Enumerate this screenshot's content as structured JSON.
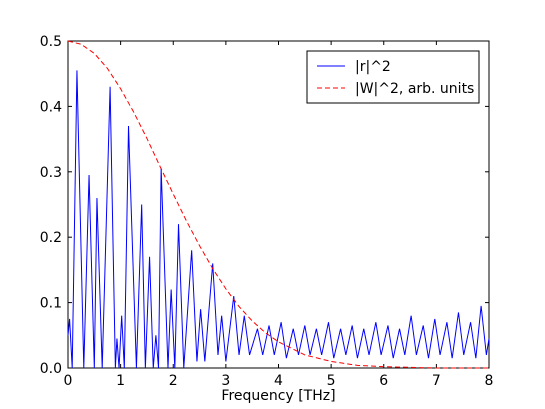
{
  "chart_data": {
    "type": "line",
    "xlabel": "Frequency [THz]",
    "xlim": [
      0,
      8
    ],
    "xticks": [
      0,
      1,
      2,
      3,
      4,
      5,
      6,
      7,
      8
    ],
    "ylim": [
      0,
      0.5
    ],
    "yticks": [
      {
        "value": 0,
        "label": "0.0"
      },
      {
        "value": 0.1,
        "label": "0.1"
      },
      {
        "value": 0.2,
        "label": "0.2"
      },
      {
        "value": 0.3,
        "label": "0.3"
      },
      {
        "value": 0.4,
        "label": "0.4"
      },
      {
        "value": 0.5,
        "label": "0.5"
      }
    ],
    "legend": "upper right",
    "series": [
      {
        "name": "|r|^2",
        "color": "#0000ff",
        "dash": "solid",
        "x": [
          0,
          0.03,
          0.08,
          0.17,
          0.3,
          0.4,
          0.5,
          0.55,
          0.65,
          0.8,
          0.9,
          0.93,
          0.97,
          1.02,
          1.07,
          1.15,
          1.3,
          1.4,
          1.47,
          1.55,
          1.62,
          1.67,
          1.72,
          1.77,
          1.9,
          1.96,
          2.03,
          2.1,
          2.2,
          2.35,
          2.45,
          2.52,
          2.6,
          2.75,
          2.85,
          2.92,
          3.0,
          3.15,
          3.25,
          3.35,
          3.45,
          3.6,
          3.7,
          3.82,
          3.92,
          4.05,
          4.15,
          4.28,
          4.38,
          4.5,
          4.6,
          4.72,
          4.82,
          4.95,
          5.05,
          5.18,
          5.28,
          5.4,
          5.5,
          5.62,
          5.72,
          5.85,
          5.95,
          6.08,
          6.18,
          6.3,
          6.4,
          6.52,
          6.62,
          6.75,
          6.85,
          6.97,
          7.07,
          7.2,
          7.3,
          7.42,
          7.52,
          7.65,
          7.75,
          7.85,
          7.95,
          8
        ],
        "values": [
          0.05,
          0.075,
          0,
          0.455,
          0,
          0.295,
          0,
          0.26,
          0,
          0.43,
          0,
          0.045,
          0,
          0.08,
          0,
          0.37,
          0,
          0.25,
          0,
          0.17,
          0,
          0.05,
          0,
          0.305,
          0,
          0.12,
          0,
          0.22,
          0,
          0.18,
          0.01,
          0.09,
          0.01,
          0.16,
          0.02,
          0.08,
          0.01,
          0.11,
          0.02,
          0.08,
          0.02,
          0.06,
          0.02,
          0.065,
          0.02,
          0.07,
          0.015,
          0.06,
          0.02,
          0.065,
          0.02,
          0.06,
          0.02,
          0.07,
          0.015,
          0.06,
          0.02,
          0.065,
          0.015,
          0.06,
          0.02,
          0.07,
          0.02,
          0.065,
          0.015,
          0.06,
          0.02,
          0.08,
          0.02,
          0.065,
          0.015,
          0.075,
          0.02,
          0.07,
          0.015,
          0.085,
          0.02,
          0.07,
          0.015,
          0.095,
          0.02,
          0.045
        ]
      },
      {
        "name": "|W|^2, arb. units",
        "color": "#ff0000",
        "dash": "dashed",
        "x": [
          0,
          0.25,
          0.5,
          0.75,
          1,
          1.25,
          1.5,
          1.75,
          2,
          2.25,
          2.5,
          2.75,
          3,
          3.25,
          3.5,
          3.75,
          4,
          4.5,
          5,
          5.5,
          6,
          7,
          8
        ],
        "values": [
          0.5,
          0.495,
          0.481,
          0.458,
          0.427,
          0.391,
          0.351,
          0.308,
          0.266,
          0.225,
          0.187,
          0.152,
          0.121,
          0.094,
          0.072,
          0.054,
          0.04,
          0.02,
          0.01,
          0.004,
          0.002,
          0,
          0
        ]
      }
    ]
  }
}
